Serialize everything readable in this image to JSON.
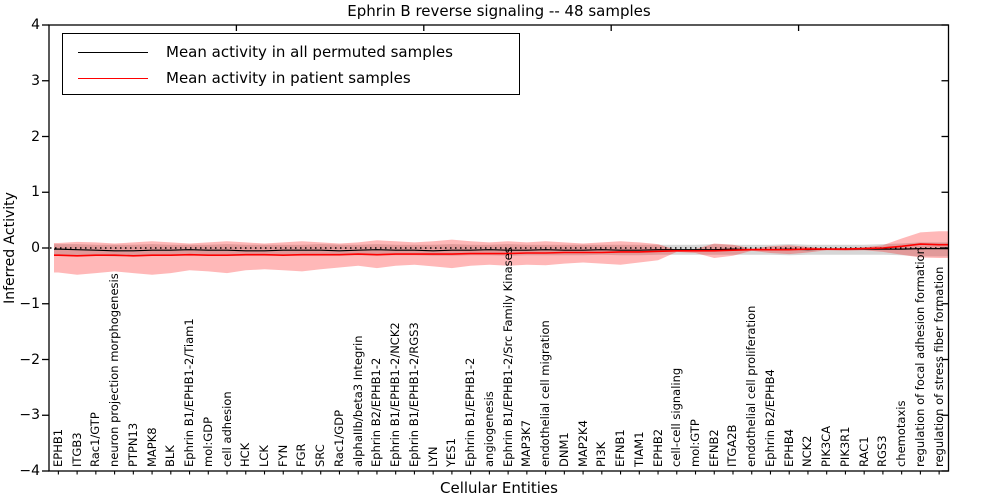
{
  "legend": {
    "items": [
      {
        "label": "Mean activity in all permuted samples",
        "color": "#000000"
      },
      {
        "label": "Mean activity in patient samples",
        "color": "#ff0000"
      }
    ],
    "position": "upper left"
  },
  "chart_data": {
    "type": "line",
    "title": "Ephrin B reverse signaling -- 48 samples",
    "xlabel": "Cellular Entities",
    "ylabel": "Inferred Activity",
    "ylim": [
      -4,
      4
    ],
    "ytick_values": [
      4,
      3,
      2,
      1,
      0,
      -1,
      -2,
      -3,
      -4
    ],
    "x_major_ticks": [
      10,
      20,
      30,
      40
    ],
    "grid": false,
    "baseline": {
      "y": 0,
      "style": "dotted",
      "color": "#000000"
    },
    "categories": [
      "EPHB1",
      "ITGB3",
      "Rac1/GTP",
      "neuron projection morphogenesis",
      "PTPN13",
      "MAPK8",
      "BLK",
      "Ephrin B1/EPHB1-2/Tiam1",
      "mol:GDP",
      "cell adhesion",
      "HCK",
      "LCK",
      "FYN",
      "FGR",
      "SRC",
      "Rac1/GDP",
      "alphaIIb/beta3 Integrin",
      "Ephrin B2/EPHB1-2",
      "Ephrin B1/EPHB1-2/NCK2",
      "Ephrin B1/EPHB1-2/RGS3",
      "LYN",
      "YES1",
      "Ephrin B1/EPHB1-2",
      "angiogenesis",
      "Ephrin B1/EPHB1-2/Src Family Kinases",
      "MAP3K7",
      "endothelial cell migration",
      "DNM1",
      "MAP2K4",
      "PI3K",
      "EFNB1",
      "TIAM1",
      "EPHB2",
      "cell-cell signaling",
      "mol:GTP",
      "EFNB2",
      "ITGA2B",
      "endothelial cell proliferation",
      "Ephrin B2/EPHB4",
      "EPHB4",
      "NCK2",
      "PIK3CA",
      "PIK3R1",
      "RAC1",
      "RGS3",
      "chemotaxis",
      "regulation of focal adhesion formation",
      "regulation of stress fiber formation"
    ],
    "series": [
      {
        "name": "Mean activity in all permuted samples",
        "color": "#000000",
        "values": [
          -0.02,
          -0.03,
          -0.04,
          -0.05,
          -0.05,
          -0.04,
          -0.04,
          -0.03,
          -0.04,
          -0.04,
          -0.05,
          -0.05,
          -0.04,
          -0.04,
          -0.04,
          -0.05,
          -0.04,
          -0.03,
          -0.04,
          -0.04,
          -0.05,
          -0.04,
          -0.04,
          -0.03,
          -0.04,
          -0.04,
          -0.03,
          -0.04,
          -0.04,
          -0.03,
          -0.04,
          -0.04,
          -0.03,
          -0.03,
          -0.03,
          -0.03,
          -0.02,
          -0.03,
          -0.03,
          -0.02,
          -0.03,
          -0.02,
          -0.02,
          -0.02,
          -0.02,
          -0.02,
          -0.01,
          -0.01
        ]
      },
      {
        "name": "Mean activity in patient samples",
        "color": "#ff0000",
        "values": [
          -0.13,
          -0.14,
          -0.13,
          -0.13,
          -0.14,
          -0.13,
          -0.13,
          -0.12,
          -0.13,
          -0.13,
          -0.12,
          -0.12,
          -0.13,
          -0.12,
          -0.12,
          -0.12,
          -0.11,
          -0.12,
          -0.11,
          -0.11,
          -0.11,
          -0.11,
          -0.1,
          -0.1,
          -0.1,
          -0.09,
          -0.09,
          -0.08,
          -0.08,
          -0.08,
          -0.07,
          -0.07,
          -0.06,
          -0.05,
          -0.05,
          -0.05,
          -0.04,
          -0.03,
          -0.03,
          -0.03,
          -0.02,
          -0.02,
          -0.02,
          -0.01,
          0.0,
          0.03,
          0.07,
          0.06
        ]
      }
    ],
    "bands": [
      {
        "name": "permuted samples spread",
        "fill": "rgba(120,120,120,0.30)",
        "upper": [
          0.07,
          0.07,
          0.06,
          0.06,
          0.06,
          0.07,
          0.06,
          0.06,
          0.06,
          0.07,
          0.06,
          0.06,
          0.06,
          0.06,
          0.07,
          0.06,
          0.06,
          0.07,
          0.06,
          0.06,
          0.06,
          0.07,
          0.06,
          0.06,
          0.07,
          0.06,
          0.06,
          0.06,
          0.06,
          0.06,
          0.06,
          0.06,
          0.06,
          0.06,
          0.06,
          0.07,
          0.06,
          0.06,
          0.06,
          0.07,
          0.06,
          0.06,
          0.06,
          0.06,
          0.07,
          0.08,
          0.1,
          0.1
        ],
        "lower": [
          -0.14,
          -0.15,
          -0.14,
          -0.15,
          -0.15,
          -0.14,
          -0.14,
          -0.13,
          -0.14,
          -0.14,
          -0.14,
          -0.14,
          -0.13,
          -0.14,
          -0.14,
          -0.14,
          -0.13,
          -0.14,
          -0.13,
          -0.13,
          -0.14,
          -0.14,
          -0.13,
          -0.13,
          -0.14,
          -0.13,
          -0.13,
          -0.13,
          -0.13,
          -0.12,
          -0.13,
          -0.13,
          -0.12,
          -0.12,
          -0.12,
          -0.12,
          -0.12,
          -0.12,
          -0.12,
          -0.13,
          -0.12,
          -0.12,
          -0.12,
          -0.12,
          -0.12,
          -0.13,
          -0.15,
          -0.15
        ]
      },
      {
        "name": "patient samples spread",
        "fill": "rgba(255,0,0,0.28)",
        "upper": [
          0.09,
          0.11,
          0.1,
          0.08,
          0.1,
          0.12,
          0.1,
          0.08,
          0.1,
          0.12,
          0.1,
          0.08,
          0.1,
          0.12,
          0.1,
          0.08,
          0.1,
          0.14,
          0.12,
          0.1,
          0.12,
          0.15,
          0.12,
          0.1,
          0.12,
          0.1,
          0.12,
          0.1,
          0.08,
          0.1,
          0.12,
          0.1,
          0.07,
          -0.04,
          -0.02,
          0.08,
          0.06,
          -0.01,
          0.03,
          0.05,
          0.02,
          -0.01,
          0.0,
          0.01,
          0.05,
          0.17,
          0.28,
          0.3
        ],
        "lower": [
          -0.44,
          -0.48,
          -0.45,
          -0.42,
          -0.45,
          -0.48,
          -0.45,
          -0.4,
          -0.42,
          -0.45,
          -0.4,
          -0.38,
          -0.4,
          -0.42,
          -0.38,
          -0.35,
          -0.32,
          -0.36,
          -0.32,
          -0.3,
          -0.33,
          -0.36,
          -0.32,
          -0.3,
          -0.32,
          -0.3,
          -0.31,
          -0.28,
          -0.26,
          -0.28,
          -0.3,
          -0.26,
          -0.22,
          -0.07,
          -0.09,
          -0.18,
          -0.14,
          -0.05,
          -0.09,
          -0.11,
          -0.08,
          -0.04,
          -0.05,
          -0.04,
          -0.07,
          -0.12,
          -0.17,
          -0.18
        ]
      }
    ]
  }
}
